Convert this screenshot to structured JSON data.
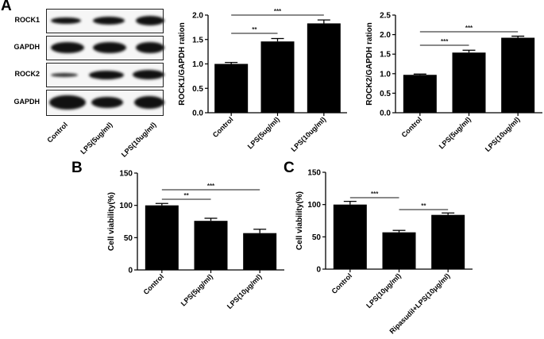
{
  "panels": {
    "A": "A",
    "B": "B",
    "C": "C"
  },
  "western_blot": {
    "rows": [
      "ROCK1",
      "GAPDH",
      "ROCK2",
      "GAPDH"
    ],
    "lanes": [
      "Control",
      "LPS(5ug/ml)",
      "LPS(10ug/ml)"
    ]
  },
  "chart_data": [
    {
      "id": "A-rock1",
      "type": "bar",
      "title": "",
      "xlabel": "",
      "ylabel": "ROCK1/GAPDH ration",
      "categories": [
        "Control",
        "LPS(5ug/ml)",
        "LPS(10ug/ml)"
      ],
      "values": [
        1.0,
        1.46,
        1.83
      ],
      "errors": [
        0.03,
        0.06,
        0.07
      ],
      "ylim": [
        0,
        2.0
      ],
      "yticks": [
        "0.0",
        "0.5",
        "1.0",
        "1.5",
        "2.0"
      ],
      "grid": false,
      "significance": [
        {
          "from": 0,
          "to": 1,
          "label": "**"
        },
        {
          "from": 0,
          "to": 2,
          "label": "***"
        }
      ]
    },
    {
      "id": "A-rock2",
      "type": "bar",
      "title": "",
      "xlabel": "",
      "ylabel": "ROCK2/GAPDH ration",
      "categories": [
        "Control",
        "LPS(5ug/ml)",
        "LPS(10ug/ml)"
      ],
      "values": [
        0.97,
        1.54,
        1.92
      ],
      "errors": [
        0.02,
        0.06,
        0.04
      ],
      "ylim": [
        0,
        2.5
      ],
      "yticks": [
        "0.0",
        "0.5",
        "1.0",
        "1.5",
        "2.0",
        "2.5"
      ],
      "grid": false,
      "significance": [
        {
          "from": 0,
          "to": 1,
          "label": "***"
        },
        {
          "from": 0,
          "to": 2,
          "label": "***"
        }
      ]
    },
    {
      "id": "B",
      "type": "bar",
      "title": "",
      "xlabel": "",
      "ylabel": "Cell viability(%)",
      "categories": [
        "Control",
        "LPS(5μg/ml)",
        "LPS(10μg/ml)"
      ],
      "values": [
        100,
        76,
        57
      ],
      "errors": [
        3,
        4,
        6
      ],
      "ylim": [
        0,
        150
      ],
      "yticks": [
        "0",
        "50",
        "100",
        "150"
      ],
      "grid": false,
      "significance": [
        {
          "from": 0,
          "to": 1,
          "label": "**"
        },
        {
          "from": 0,
          "to": 2,
          "label": "***"
        }
      ]
    },
    {
      "id": "C",
      "type": "bar",
      "title": "",
      "xlabel": "",
      "ylabel": "Cell viability(%)",
      "categories": [
        "Control",
        "LPS(10μg/ml)",
        "Ripasudil+LPS(10μg/ml)"
      ],
      "values": [
        100,
        57,
        84
      ],
      "errors": [
        5,
        3,
        3
      ],
      "ylim": [
        0,
        150
      ],
      "yticks": [
        "0",
        "50",
        "100",
        "150"
      ],
      "grid": false,
      "significance": [
        {
          "from": 0,
          "to": 1,
          "label": "***"
        },
        {
          "from": 1,
          "to": 2,
          "label": "**"
        }
      ]
    }
  ]
}
